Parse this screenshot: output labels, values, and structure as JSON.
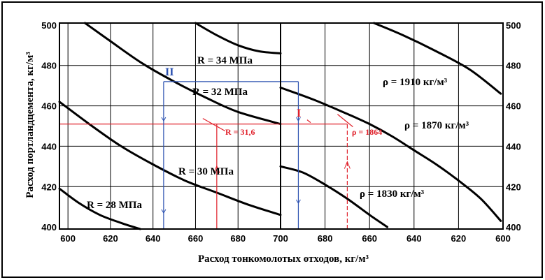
{
  "chart_data": {
    "type": "line",
    "xlabel": "Расход тонкомолотых отходов, кг/м³",
    "ylabel": "Расход портландцемента, кг/м³",
    "left_panel": {
      "x_ticks": [
        "600",
        "620",
        "640",
        "660",
        "680",
        "700"
      ],
      "y_ticks": [
        "400",
        "420",
        "440",
        "460",
        "480",
        "500"
      ],
      "xlim": [
        596,
        700
      ],
      "ylim": [
        399,
        501
      ],
      "series": [
        {
          "label": "R = 28 МПа",
          "points": [
            [
              596,
              419
            ],
            [
              605,
              412
            ],
            [
              615,
              406
            ],
            [
              625,
              402
            ],
            [
              634,
              399
            ]
          ]
        },
        {
          "label": "R = 30 МПа",
          "points": [
            [
              596,
              462
            ],
            [
              610,
              451
            ],
            [
              625,
              440
            ],
            [
              640,
              431
            ],
            [
              655,
              423
            ],
            [
              670,
              417
            ],
            [
              685,
              411
            ],
            [
              700,
              406
            ]
          ]
        },
        {
          "label": "R = 32 МПа",
          "points": [
            [
              608,
              501
            ],
            [
              620,
              492
            ],
            [
              635,
              481
            ],
            [
              650,
              472
            ],
            [
              665,
              464
            ],
            [
              680,
              457
            ],
            [
              700,
              451
            ]
          ]
        },
        {
          "label": "R = 34 МПа",
          "points": [
            [
              660,
              501
            ],
            [
              670,
              495
            ],
            [
              680,
              490
            ],
            [
              690,
              487
            ],
            [
              700,
              486
            ]
          ]
        }
      ],
      "annotations": [
        {
          "text": "R = 31,6",
          "color": "#e0202a"
        },
        {
          "text": "II",
          "color": "#2a50b0"
        }
      ]
    },
    "right_panel": {
      "x_ticks": [
        "680",
        "660",
        "640",
        "620",
        "600"
      ],
      "y_ticks": [
        "400",
        "420",
        "440",
        "460",
        "480",
        "500"
      ],
      "xlim": [
        700,
        600
      ],
      "ylim": [
        399,
        501
      ],
      "series": [
        {
          "label": "ρ = 1830 кг/м³",
          "points": [
            [
              700,
              430
            ],
            [
              690,
              427
            ],
            [
              680,
              421
            ],
            [
              670,
              414
            ],
            [
              660,
              406
            ],
            [
              652,
              400
            ]
          ]
        },
        {
          "label": "ρ = 1870 кг/м³",
          "points": [
            [
              700,
              469
            ],
            [
              685,
              463
            ],
            [
              670,
              456
            ],
            [
              660,
              451
            ],
            [
              650,
              445
            ],
            [
              640,
              438
            ],
            [
              630,
              431
            ],
            [
              620,
              423
            ],
            [
              610,
              414
            ],
            [
              601,
              403
            ]
          ]
        },
        {
          "label": "ρ = 1910 кг/м³",
          "points": [
            [
              658,
              501
            ],
            [
              645,
              495
            ],
            [
              630,
              487
            ],
            [
              615,
              478
            ],
            [
              601,
              466
            ]
          ]
        }
      ],
      "annotations": [
        {
          "text": "ρ = 1864",
          "color": "#e0202a"
        },
        {
          "text": "I",
          "color": "#e0202a"
        }
      ]
    },
    "red_guide": {
      "cement": 451,
      "waste": 670
    },
    "blue_guide": {
      "cement": 472,
      "waste_left": 645,
      "waste_right": 692
    },
    "colors": {
      "red": "#e0202a",
      "blue": "#2a50b0",
      "grid": "#000000"
    }
  }
}
